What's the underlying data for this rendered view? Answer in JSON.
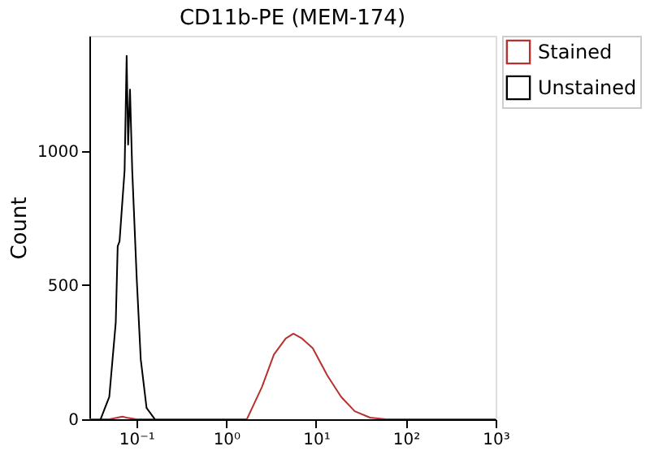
{
  "chart_data": {
    "type": "line",
    "title": "CD11b-PE (MEM-174)",
    "ylabel": "Count",
    "log": "x",
    "xlim": [
      0.03,
      1000
    ],
    "xticks": [
      {
        "value": 0.1,
        "label": "10⁻¹"
      },
      {
        "value": 1,
        "label": "10⁰"
      },
      {
        "value": 10,
        "label": "10¹"
      },
      {
        "value": 100,
        "label": "10²"
      },
      {
        "value": 1000,
        "label": "10³"
      }
    ],
    "ylim": [
      0,
      1430
    ],
    "yticks": [
      0,
      500,
      1000
    ],
    "grid": false,
    "legend": "top right",
    "marker": "none",
    "line_style": "solid",
    "series": [
      {
        "name": "Stained",
        "color": "#b8312f",
        "x": [
          0.03,
          0.05,
          0.06,
          0.07,
          0.08,
          0.1,
          0.3,
          1,
          1.7,
          2.5,
          3.4,
          4.6,
          5.6,
          7.0,
          9.2,
          13.4,
          19,
          27,
          40,
          60,
          1000
        ],
        "values": [
          0,
          0,
          5,
          10,
          5,
          0,
          0,
          0,
          0,
          120,
          241,
          301,
          319,
          301,
          265,
          163,
          84,
          30,
          6,
          0,
          0
        ]
      },
      {
        "name": "Unstained",
        "color": "#000000",
        "x": [
          0.04,
          0.05,
          0.059,
          0.062,
          0.065,
          0.074,
          0.078,
          0.081,
          0.085,
          0.09,
          0.101,
          0.112,
          0.13,
          0.161
        ],
        "values": [
          0,
          84,
          361,
          645,
          663,
          928,
          1355,
          1024,
          1229,
          928,
          524,
          223,
          42,
          0
        ]
      }
    ]
  }
}
